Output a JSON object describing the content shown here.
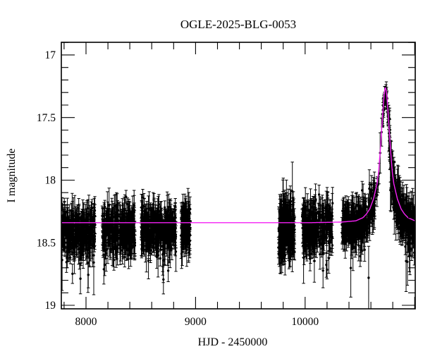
{
  "window": {
    "title": "OGLE-2025-BLG-0053"
  },
  "chart_data": {
    "type": "scatter",
    "title": "OGLE-2025-BLG-0053",
    "xlabel": "HJD - 2450000",
    "ylabel": "I magnitude",
    "x_range": [
      7775,
      11005
    ],
    "y_range_mag": [
      16.899,
      19.028
    ],
    "y_axis_inverted": true,
    "grid": false,
    "legend": null,
    "x_major_ticks": [
      {
        "value": 8000,
        "label": "8000"
      },
      {
        "value": 9000,
        "label": "9000"
      },
      {
        "value": 10000,
        "label": "10000"
      },
      {
        "value": 11000,
        "label": ""
      }
    ],
    "x_minor_tick_step": 200,
    "y_major_ticks": [
      {
        "value": 17,
        "label": "17"
      },
      {
        "value": 17.5,
        "label": "17.5"
      },
      {
        "value": 18,
        "label": "18"
      },
      {
        "value": 18.5,
        "label": "18.5"
      },
      {
        "value": 19,
        "label": "19"
      }
    ],
    "y_minor_tick_step": 0.1,
    "colors": {
      "data_points": "#000000",
      "model_curve": "#f520f5",
      "axis": "#000000",
      "background": "#ffffff"
    },
    "baseline_mag": 18.34,
    "event_peak": {
      "t": 10733,
      "mag": 17.26
    },
    "model_profile_dt_mag": [
      [
        0,
        17.26
      ],
      [
        6,
        17.28
      ],
      [
        13,
        17.33
      ],
      [
        23,
        17.45
      ],
      [
        33,
        17.58
      ],
      [
        45,
        17.74
      ],
      [
        63,
        17.94
      ],
      [
        77,
        18.03
      ],
      [
        93,
        18.09
      ],
      [
        109,
        18.15
      ],
      [
        143,
        18.23
      ],
      [
        173,
        18.27
      ],
      [
        206,
        18.3
      ],
      [
        270,
        18.325
      ],
      [
        400,
        18.335
      ],
      [
        700,
        18.34
      ],
      [
        3000,
        18.34
      ]
    ],
    "observation_seasons": [
      {
        "name": "season-1",
        "t_start": 7781,
        "t_end": 8084,
        "n": 290,
        "mag_mean": 18.41,
        "mag_sigma": 0.085,
        "err_typ": 0.07,
        "follow_model": false
      },
      {
        "name": "season-2",
        "t_start": 8148,
        "t_end": 8450,
        "n": 290,
        "mag_mean": 18.4,
        "mag_sigma": 0.085,
        "err_typ": 0.07,
        "follow_model": false
      },
      {
        "name": "season-3",
        "t_start": 8502,
        "t_end": 8823,
        "n": 330,
        "mag_mean": 18.39,
        "mag_sigma": 0.085,
        "err_typ": 0.07,
        "follow_model": false
      },
      {
        "name": "season-3b",
        "t_start": 8868,
        "t_end": 8952,
        "n": 110,
        "mag_mean": 18.38,
        "mag_sigma": 0.07,
        "err_typ": 0.07,
        "follow_model": false
      },
      {
        "name": "season-4",
        "t_start": 9756,
        "t_end": 9904,
        "n": 190,
        "mag_mean": 18.38,
        "mag_sigma": 0.1,
        "err_typ": 0.08,
        "follow_model": false
      },
      {
        "name": "season-5",
        "t_start": 9968,
        "t_end": 10251,
        "n": 260,
        "mag_mean": 18.38,
        "mag_sigma": 0.085,
        "err_typ": 0.07,
        "follow_model": false
      },
      {
        "name": "season-6",
        "t_start": 10335,
        "t_end": 10637,
        "n": 280,
        "mag_mean": 18.37,
        "mag_sigma": 0.08,
        "err_typ": 0.07,
        "follow_model": true
      },
      {
        "name": "rise-sparse",
        "t_start": 10645,
        "t_end": 10702,
        "n": 10,
        "mag_mean": 18.0,
        "mag_sigma": 0.03,
        "err_typ": 0.05,
        "follow_model": true
      },
      {
        "name": "peak-points",
        "t_start": 10705,
        "t_end": 10762,
        "n": 32,
        "mag_mean": 17.4,
        "mag_sigma": 0.025,
        "err_typ": 0.045,
        "follow_model": true
      },
      {
        "name": "decline-season",
        "t_start": 10762,
        "t_end": 11003,
        "n": 270,
        "mag_mean": 18.3,
        "mag_sigma": 0.08,
        "err_typ": 0.07,
        "follow_model": true
      }
    ],
    "random_seed": 42
  }
}
